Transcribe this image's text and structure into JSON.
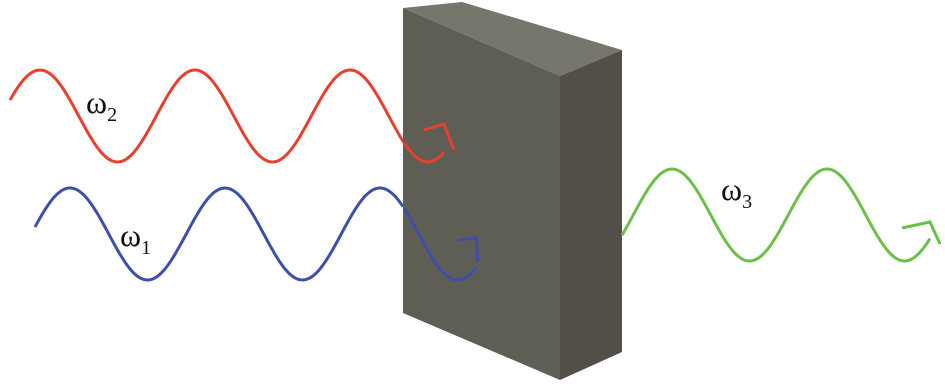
{
  "labels": [
    {
      "symbol": "ω",
      "subscript": "2"
    },
    {
      "symbol": "ω",
      "subscript": "1"
    },
    {
      "symbol": "ω",
      "subscript": "3"
    }
  ]
}
